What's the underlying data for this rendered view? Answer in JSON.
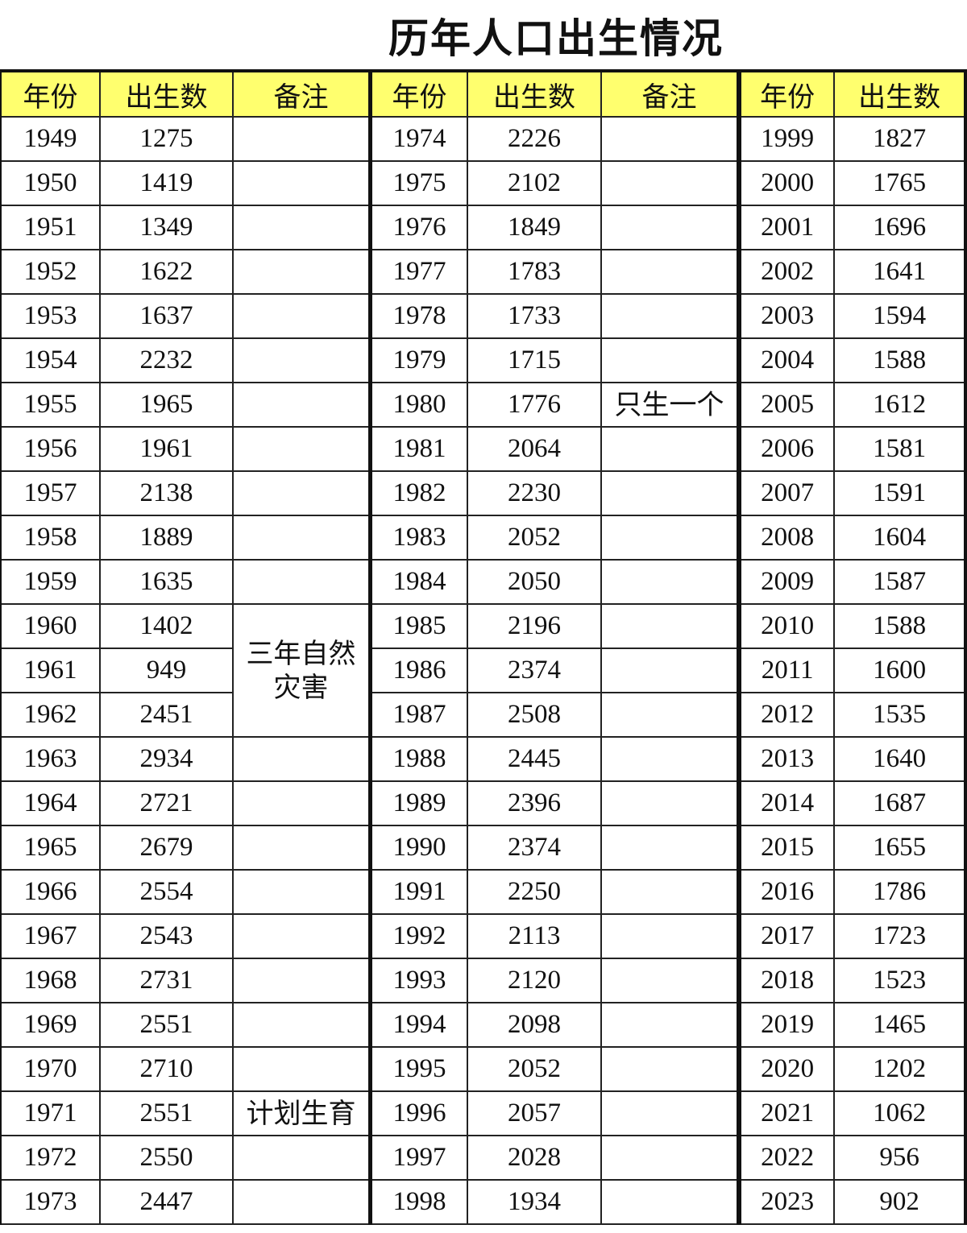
{
  "title": "历年人口出生情况",
  "tables": [
    {
      "headers": [
        "年份",
        "出生数",
        "备注"
      ],
      "rows": [
        [
          1949,
          1275
        ],
        [
          1950,
          1419
        ],
        [
          1951,
          1349
        ],
        [
          1952,
          1622
        ],
        [
          1953,
          1637
        ],
        [
          1954,
          2232
        ],
        [
          1955,
          1965
        ],
        [
          1956,
          1961
        ],
        [
          1957,
          2138
        ],
        [
          1958,
          1889
        ],
        [
          1959,
          1635
        ],
        [
          1960,
          1402,
          "三年自然灾害"
        ],
        [
          1961,
          949
        ],
        [
          1962,
          2451
        ],
        [
          1963,
          2934
        ],
        [
          1964,
          2721
        ],
        [
          1965,
          2679
        ],
        [
          1966,
          2554
        ],
        [
          1967,
          2543
        ],
        [
          1968,
          2731
        ],
        [
          1969,
          2551
        ],
        [
          1970,
          2710
        ],
        [
          1971,
          2551,
          "计划生育"
        ],
        [
          1972,
          2550
        ],
        [
          1973,
          2447
        ]
      ]
    },
    {
      "headers": [
        "年份",
        "出生数",
        "备注"
      ],
      "rows": [
        [
          1974,
          2226
        ],
        [
          1975,
          2102
        ],
        [
          1976,
          1849
        ],
        [
          1977,
          1783
        ],
        [
          1978,
          1733
        ],
        [
          1979,
          1715
        ],
        [
          1980,
          1776,
          "只生一个"
        ],
        [
          1981,
          2064
        ],
        [
          1982,
          2230
        ],
        [
          1983,
          2052
        ],
        [
          1984,
          2050
        ],
        [
          1985,
          2196
        ],
        [
          1986,
          2374
        ],
        [
          1987,
          2508
        ],
        [
          1988,
          2445
        ],
        [
          1989,
          2396
        ],
        [
          1990,
          2374
        ],
        [
          1991,
          2250
        ],
        [
          1992,
          2113
        ],
        [
          1993,
          2120
        ],
        [
          1994,
          2098
        ],
        [
          1995,
          2052
        ],
        [
          1996,
          2057
        ],
        [
          1997,
          2028
        ],
        [
          1998,
          1934
        ]
      ]
    },
    {
      "headers": [
        "年份",
        "出生数"
      ],
      "rows": [
        [
          1999,
          1827
        ],
        [
          2000,
          1765
        ],
        [
          2001,
          1696
        ],
        [
          2002,
          1641
        ],
        [
          2003,
          1594
        ],
        [
          2004,
          1588
        ],
        [
          2005,
          1612
        ],
        [
          2006,
          1581
        ],
        [
          2007,
          1591
        ],
        [
          2008,
          1604
        ],
        [
          2009,
          1587
        ],
        [
          2010,
          1588
        ],
        [
          2011,
          1600
        ],
        [
          2012,
          1535
        ],
        [
          2013,
          1640
        ],
        [
          2014,
          1687
        ],
        [
          2015,
          1655
        ],
        [
          2016,
          1786
        ],
        [
          2017,
          1723
        ],
        [
          2018,
          1523
        ],
        [
          2019,
          1465
        ],
        [
          2020,
          1202
        ],
        [
          2021,
          1062
        ],
        [
          2022,
          956
        ],
        [
          2023,
          902
        ]
      ]
    }
  ]
}
